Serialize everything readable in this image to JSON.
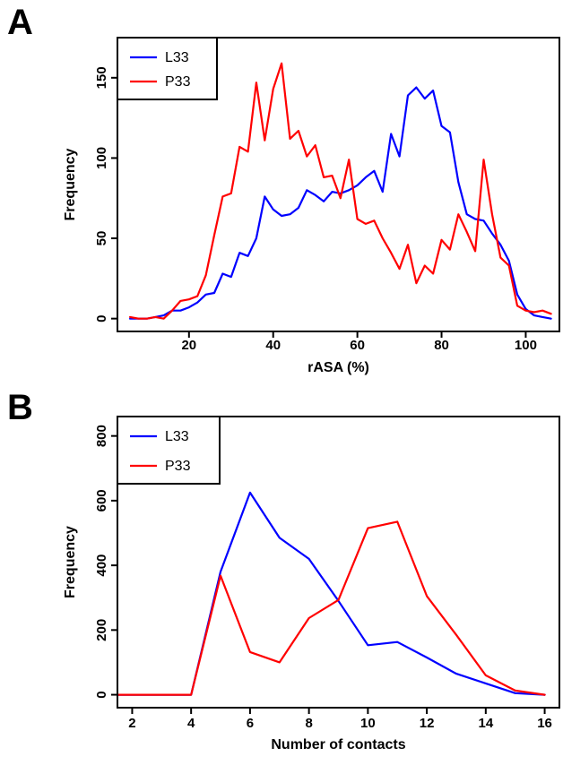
{
  "chart_data": [
    {
      "type": "line",
      "panel_label": "A",
      "xlabel": "rASA (%)",
      "ylabel": "Frequency",
      "xlim": [
        3,
        108
      ],
      "ylim": [
        -8,
        175
      ],
      "xticks": [
        20,
        40,
        60,
        80,
        100
      ],
      "yticks": [
        0,
        50,
        100,
        150
      ],
      "grid": false,
      "legend": "top-left",
      "series": [
        {
          "name": "L33",
          "color": "#0000ff",
          "x": [
            6,
            8,
            10,
            12,
            14,
            16,
            18,
            20,
            22,
            24,
            26,
            28,
            30,
            32,
            34,
            36,
            38,
            40,
            42,
            44,
            46,
            48,
            50,
            52,
            54,
            56,
            58,
            60,
            62,
            64,
            66,
            68,
            70,
            72,
            74,
            76,
            78,
            80,
            82,
            84,
            86,
            88,
            90,
            92,
            94,
            96,
            98,
            100,
            102,
            104,
            106
          ],
          "y": [
            0,
            0,
            0,
            1,
            2,
            5,
            5,
            7,
            10,
            15,
            16,
            28,
            26,
            41,
            39,
            50,
            76,
            68,
            64,
            65,
            69,
            80,
            77,
            73,
            79,
            78,
            80,
            83,
            88,
            92,
            79,
            115,
            101,
            139,
            144,
            137,
            142,
            120,
            116,
            85,
            65,
            62,
            61,
            53,
            46,
            36,
            15,
            6,
            2,
            1,
            0
          ]
        },
        {
          "name": "P33",
          "color": "#ff0000",
          "x": [
            6,
            8,
            10,
            12,
            14,
            16,
            18,
            20,
            22,
            24,
            26,
            28,
            30,
            32,
            34,
            36,
            38,
            40,
            42,
            44,
            46,
            48,
            50,
            52,
            54,
            56,
            58,
            60,
            62,
            64,
            66,
            68,
            70,
            72,
            74,
            76,
            78,
            80,
            82,
            84,
            86,
            88,
            90,
            92,
            94,
            96,
            98,
            100,
            102,
            104,
            106
          ],
          "y": [
            1,
            0,
            0,
            1,
            0,
            5,
            11,
            12,
            14,
            27,
            52,
            76,
            78,
            107,
            104,
            147,
            111,
            143,
            159,
            112,
            117,
            101,
            108,
            88,
            89,
            75,
            99,
            62,
            59,
            61,
            50,
            41,
            31,
            46,
            22,
            33,
            28,
            49,
            43,
            65,
            54,
            42,
            99,
            65,
            38,
            33,
            8,
            5,
            4,
            5,
            3
          ]
        }
      ]
    },
    {
      "type": "line",
      "panel_label": "B",
      "xlabel": "Number of contacts",
      "ylabel": "Frequency",
      "xlim": [
        1.5,
        16.5
      ],
      "ylim": [
        -40,
        860
      ],
      "xticks": [
        2,
        4,
        6,
        8,
        10,
        12,
        14,
        16
      ],
      "yticks": [
        0,
        200,
        400,
        600,
        800
      ],
      "grid": false,
      "legend": "top-left",
      "series": [
        {
          "name": "L33",
          "color": "#0000ff",
          "x": [
            1.5,
            2,
            3,
            4,
            5,
            6,
            7,
            8,
            9,
            10,
            11,
            12,
            13,
            14,
            15,
            16
          ],
          "y": [
            0,
            0,
            0,
            0,
            380,
            625,
            485,
            420,
            290,
            153,
            163,
            115,
            65,
            35,
            5,
            0
          ]
        },
        {
          "name": "P33",
          "color": "#ff0000",
          "x": [
            1.5,
            2,
            3,
            4,
            5,
            6,
            7,
            8,
            9,
            10,
            11,
            12,
            13,
            14,
            15,
            16
          ],
          "y": [
            0,
            0,
            0,
            0,
            368,
            132,
            100,
            237,
            293,
            515,
            535,
            305,
            185,
            60,
            13,
            0
          ]
        }
      ]
    }
  ]
}
